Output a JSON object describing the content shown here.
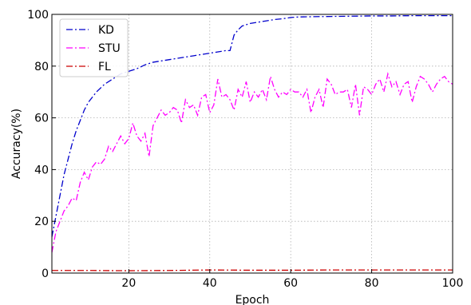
{
  "chart_data": {
    "type": "line",
    "title": "",
    "xlabel": "Epoch",
    "ylabel": "Accuracy(%)",
    "xlim": [
      1,
      100
    ],
    "ylim": [
      0,
      100
    ],
    "xticks": [
      20,
      40,
      60,
      80,
      100
    ],
    "yticks": [
      0,
      20,
      40,
      60,
      80,
      100
    ],
    "grid": true,
    "legend_position": "top-left",
    "series": [
      {
        "name": "KD",
        "color": "#0000cc",
        "dash": "dashdot",
        "x": [
          1,
          2,
          3,
          4,
          5,
          6,
          7,
          8,
          9,
          10,
          12,
          14,
          16,
          18,
          20,
          22,
          24,
          26,
          28,
          30,
          32,
          34,
          36,
          38,
          40,
          42,
          44,
          45,
          46,
          47,
          48,
          50,
          52,
          54,
          56,
          58,
          60,
          62,
          65,
          70,
          75,
          80,
          85,
          90,
          95,
          100
        ],
        "y": [
          14,
          22,
          30,
          38,
          44,
          50,
          55,
          59,
          63,
          66,
          70,
          73,
          75,
          77,
          78,
          79,
          80.5,
          81.5,
          82,
          82.5,
          83,
          83.5,
          84,
          84.5,
          85,
          85.5,
          86,
          86,
          92,
          94,
          95.5,
          96.5,
          97,
          97.5,
          98,
          98.3,
          98.8,
          99,
          99.1,
          99.2,
          99.3,
          99.4,
          99.4,
          99.5,
          99.5,
          99.5
        ]
      },
      {
        "name": "STU",
        "color": "#ff00ff",
        "dash": "dashdot",
        "x": [
          1,
          2,
          3,
          4,
          5,
          6,
          7,
          8,
          9,
          10,
          11,
          12,
          13,
          14,
          15,
          16,
          17,
          18,
          19,
          20,
          21,
          22,
          23,
          24,
          25,
          26,
          27,
          28,
          29,
          30,
          31,
          32,
          33,
          34,
          35,
          36,
          37,
          38,
          39,
          40,
          41,
          42,
          43,
          44,
          45,
          46,
          47,
          48,
          49,
          50,
          51,
          52,
          53,
          54,
          55,
          56,
          57,
          58,
          59,
          60,
          61,
          62,
          63,
          64,
          65,
          66,
          67,
          68,
          69,
          70,
          71,
          72,
          73,
          74,
          75,
          76,
          77,
          78,
          79,
          80,
          81,
          82,
          83,
          84,
          85,
          86,
          87,
          88,
          89,
          90,
          91,
          92,
          93,
          94,
          95,
          96,
          97,
          98,
          99,
          100
        ],
        "y": [
          8,
          16,
          20,
          24,
          26,
          29,
          28,
          35,
          39,
          36,
          41,
          43,
          42,
          44,
          49,
          47,
          50,
          53,
          50,
          52,
          58,
          53,
          51,
          54,
          45,
          57,
          60,
          63,
          61,
          62,
          64,
          63,
          58,
          67,
          64,
          65,
          61,
          68,
          69,
          62,
          65,
          75,
          68,
          69,
          67,
          63,
          71,
          68,
          74,
          66,
          70,
          68,
          71,
          67,
          76,
          71,
          68,
          70,
          69,
          71,
          70,
          70,
          68,
          71,
          62,
          68,
          71,
          64,
          75,
          73,
          69,
          70,
          70,
          71,
          64,
          73,
          61,
          72,
          71,
          69,
          73,
          75,
          70,
          77,
          72,
          74,
          69,
          73,
          74,
          66,
          72,
          76,
          75,
          73,
          70,
          73,
          75,
          76,
          74,
          73
        ]
      },
      {
        "name": "FL",
        "color": "#cc0000",
        "dash": "dashdot",
        "x": [
          1,
          10,
          20,
          30,
          40,
          50,
          60,
          70,
          80,
          90,
          100
        ],
        "y": [
          1,
          1,
          0.9,
          1,
          1.2,
          1.1,
          1.1,
          1.2,
          1.2,
          1.2,
          1.2
        ]
      }
    ]
  }
}
